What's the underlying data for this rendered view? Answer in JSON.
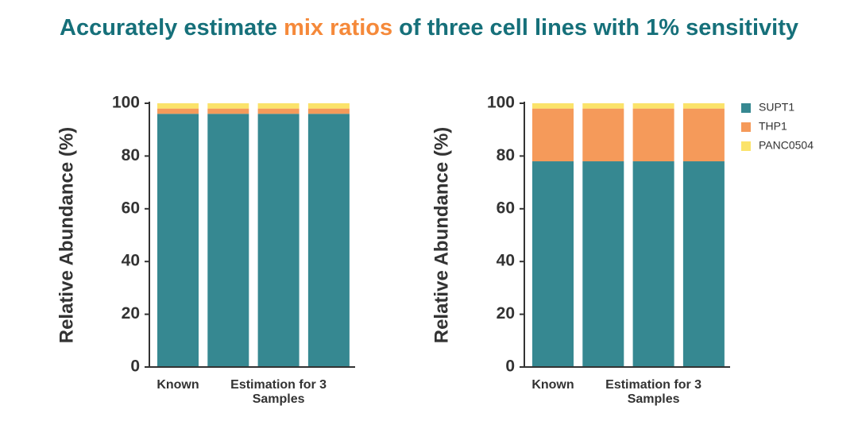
{
  "title_parts": [
    "Accurately estimate ",
    "mix ratios",
    " of three cell lines with 1% sensitivity"
  ],
  "chart_data": [
    {
      "type": "bar",
      "stacked": true,
      "y_label": "Relative Abundance (%)",
      "categories": [
        "Known",
        null,
        "Estimation for 3 Samples",
        null
      ],
      "ylim": [
        0,
        100
      ],
      "yticks": [
        0,
        20,
        40,
        60,
        80,
        100
      ],
      "grid": false,
      "legend": false,
      "series": [
        {
          "color": "#368891",
          "values": [
            96,
            96,
            96,
            96
          ]
        },
        {
          "color": "#f59a5a",
          "values": [
            2,
            2,
            2,
            2
          ]
        },
        {
          "color": "#fbe36a",
          "values": [
            2,
            2,
            2,
            2
          ]
        }
      ]
    },
    {
      "type": "bar",
      "stacked": true,
      "y_label": "Relative Abundance (%)",
      "categories": [
        "Known",
        null,
        "Estimation for 3 Samples",
        null
      ],
      "ylim": [
        0,
        100
      ],
      "yticks": [
        0,
        20,
        40,
        60,
        80,
        100
      ],
      "grid": false,
      "legend": "right",
      "series": [
        {
          "name": "SUPT1",
          "color": "#368891",
          "values": [
            78,
            78,
            78,
            78
          ]
        },
        {
          "name": "THP1",
          "color": "#f59a5a",
          "values": [
            20,
            20,
            20,
            20
          ]
        },
        {
          "name": "PANC0504",
          "color": "#fbe36a",
          "values": [
            2,
            2,
            2,
            2
          ]
        }
      ]
    }
  ]
}
